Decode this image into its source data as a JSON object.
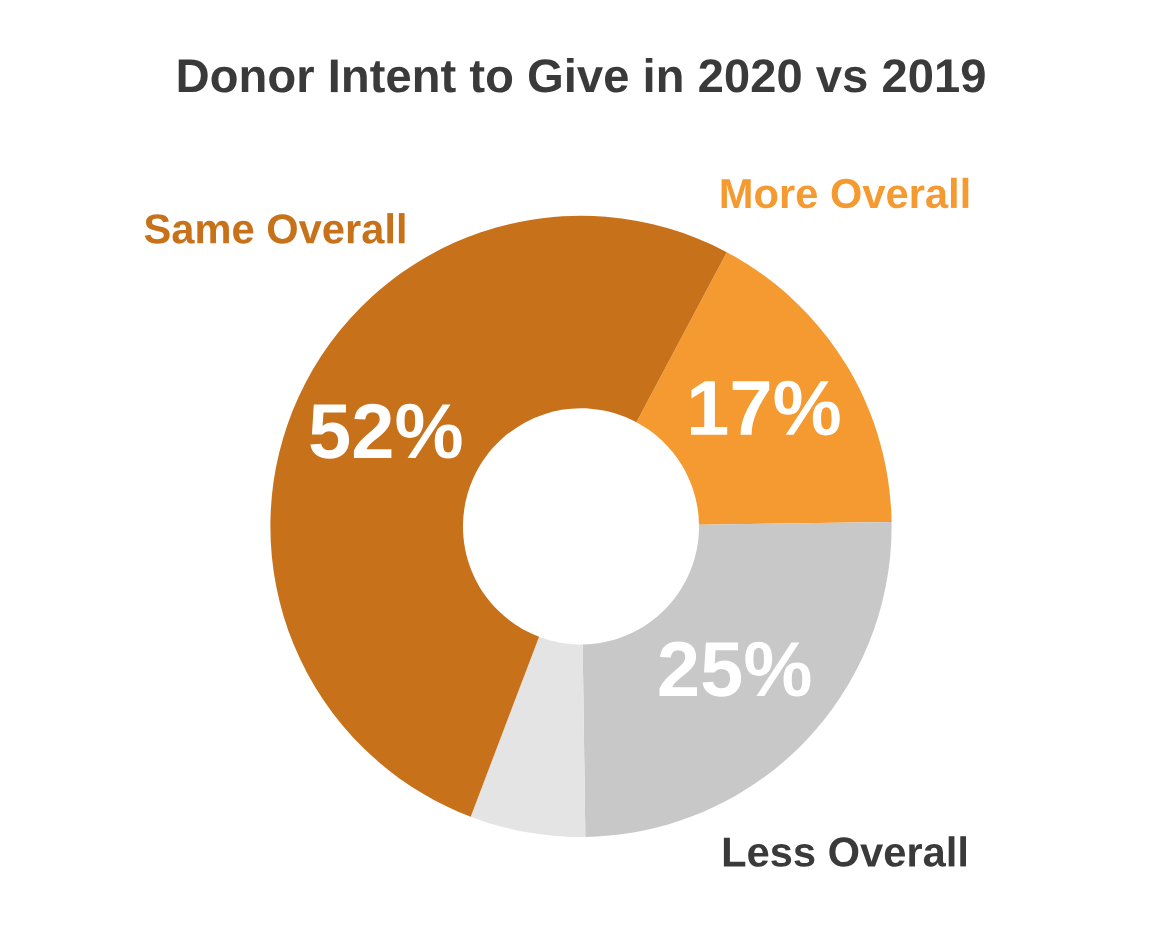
{
  "chart_data": {
    "type": "donut",
    "title": "Donor Intent to Give in 2020 vs 2019",
    "categories": [
      "More Overall",
      "Less Overall",
      null,
      "Same Overall"
    ],
    "values": [
      17,
      25,
      6,
      52
    ],
    "colors": [
      "#f59a30",
      "#c8c8c8",
      "#e4e4e4",
      "#c8711b"
    ],
    "value_labels": [
      "17%",
      "25%",
      null,
      "52%"
    ],
    "legend": false
  }
}
